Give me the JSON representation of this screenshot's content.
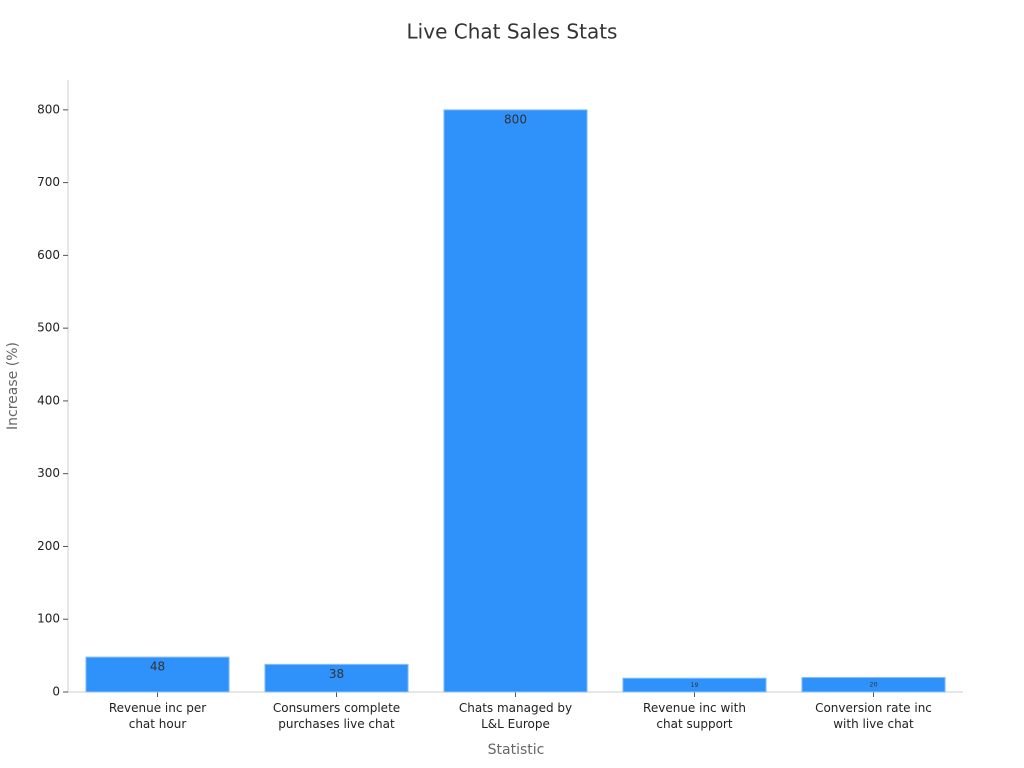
{
  "chart_data": {
    "type": "bar",
    "title": "Live Chat Sales Stats",
    "x_label": "Statistic",
    "y_label": "Increase (%)",
    "categories": [
      "Revenue inc per chat hour",
      "Consumers complete purchases live chat",
      "Chats managed by L&L Europe",
      "Revenue inc with chat support",
      "Conversion rate inc with live chat"
    ],
    "values": [
      48,
      38,
      800,
      19,
      20
    ],
    "color": "#2f91fa",
    "ylim": [
      0,
      841
    ],
    "yticks": [
      0,
      100,
      200,
      300,
      400,
      500,
      600,
      700,
      800
    ],
    "grid": false
  }
}
